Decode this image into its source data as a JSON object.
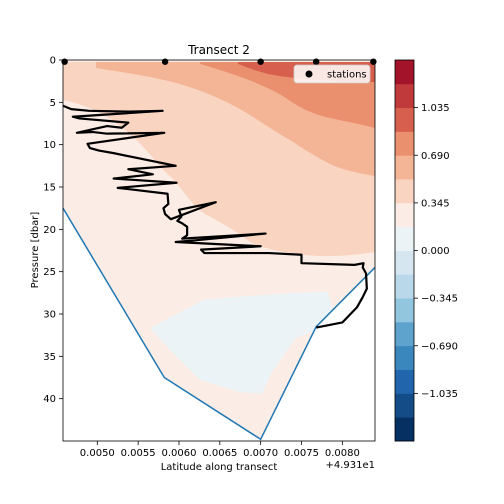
{
  "chart_data": {
    "type": "heatmap",
    "title": "Transect 2",
    "xlabel": "Latitude along transect",
    "ylabel": "Pressure [dbar]",
    "x_offset_label": "+4.931e1",
    "xlim": [
      0.00458,
      0.0084
    ],
    "ylim": [
      45,
      0
    ],
    "x_ticks": [
      {
        "value": 0.005,
        "label": "0.0050"
      },
      {
        "value": 0.0055,
        "label": "0.0055"
      },
      {
        "value": 0.006,
        "label": "0.0060"
      },
      {
        "value": 0.0065,
        "label": "0.0065"
      },
      {
        "value": 0.007,
        "label": "0.0070"
      },
      {
        "value": 0.0075,
        "label": "0.0075"
      },
      {
        "value": 0.008,
        "label": "0.0080"
      }
    ],
    "y_ticks": [
      {
        "value": 0,
        "label": "0"
      },
      {
        "value": 5,
        "label": "5"
      },
      {
        "value": 10,
        "label": "10"
      },
      {
        "value": 15,
        "label": "15"
      },
      {
        "value": 20,
        "label": "20"
      },
      {
        "value": 25,
        "label": "25"
      },
      {
        "value": 30,
        "label": "30"
      },
      {
        "value": 35,
        "label": "35"
      },
      {
        "value": 40,
        "label": "40"
      }
    ],
    "colorbar": {
      "range": [
        -1.2075,
        1.2075
      ],
      "levels": [
        -1.2075,
        -1.035,
        -0.8625,
        -0.69,
        -0.5175,
        -0.345,
        -0.1725,
        0,
        0.1725,
        0.345,
        0.5175,
        0.69,
        0.8625,
        1.035,
        1.2075
      ],
      "tick_values": [
        -1.035,
        -0.69,
        -0.345,
        0,
        0.345,
        0.69,
        1.035
      ],
      "tick_labels": [
        "−1.035",
        "−0.690",
        "−0.345",
        "0.000",
        "0.345",
        "0.690",
        "1.035"
      ],
      "colors": [
        "#053061",
        "#134c87",
        "#2166ac",
        "#3a87bd",
        "#5da3cd",
        "#92c5de",
        "#b9d8ea",
        "#d5e6f0",
        "#ecf3f6",
        "#fbede5",
        "#f9d4c1",
        "#f4b597",
        "#ea906f",
        "#d6604d",
        "#c03a3c",
        "#a3142a",
        "#67001f"
      ]
    },
    "legend": {
      "placement": "top-right",
      "entries": [
        {
          "label": "stations",
          "marker": "circle"
        }
      ]
    },
    "stations": [
      {
        "x": 0.0046,
        "y": 0.2
      },
      {
        "x": 0.00583,
        "y": 0.2
      },
      {
        "x": 0.007,
        "y": 0.2
      },
      {
        "x": 0.00768,
        "y": 0.2
      },
      {
        "x": 0.00838,
        "y": 0.2
      }
    ],
    "bathymetry": {
      "color": "#1f77b4",
      "x": [
        0.00458,
        0.00582,
        0.007,
        0.00768,
        0.0084
      ],
      "y": [
        17.5,
        37.5,
        44.8,
        31.5,
        24.5
      ]
    },
    "profile": {
      "color": "#000000",
      "x": [
        0.00458,
        0.00468,
        0.0049,
        0.0054,
        0.0058,
        0.0047,
        0.00478,
        0.00538,
        0.0053,
        0.00512,
        0.00475,
        0.00494,
        0.00512,
        0.00582,
        0.00488,
        0.00491,
        0.00502,
        0.0052,
        0.00596,
        0.00538,
        0.00568,
        0.0052,
        0.00597,
        0.00525,
        0.00586,
        0.00587,
        0.00581,
        0.00583,
        0.0059,
        0.00645,
        0.006,
        0.00603,
        0.00598,
        0.00604,
        0.0061,
        0.0061,
        0.00604,
        0.00706,
        0.0062,
        0.00596,
        0.007,
        0.00627,
        0.00631,
        0.0071,
        0.0075,
        0.0075,
        0.00815,
        0.00826,
        0.00825,
        0.00829,
        0.0083,
        0.00825,
        0.00818,
        0.008,
        0.00768
      ],
      "y": [
        5.4,
        5.8,
        6.0,
        6.1,
        6.0,
        6.7,
        6.9,
        7.4,
        8.0,
        7.8,
        8.6,
        8.5,
        8.7,
        8.6,
        9.9,
        10.4,
        10.7,
        11.0,
        12.5,
        12.9,
        13.5,
        14.0,
        14.5,
        15.1,
        15.8,
        17.0,
        17.5,
        18.2,
        18.8,
        16.8,
        17.7,
        18.5,
        19.0,
        19.3,
        19.7,
        20.7,
        21.1,
        20.5,
        21.3,
        21.5,
        22.0,
        22.4,
        22.8,
        22.8,
        23.0,
        24.0,
        24.2,
        24.0,
        24.5,
        25.2,
        27.0,
        28.0,
        29.2,
        31.0,
        31.6
      ]
    }
  }
}
